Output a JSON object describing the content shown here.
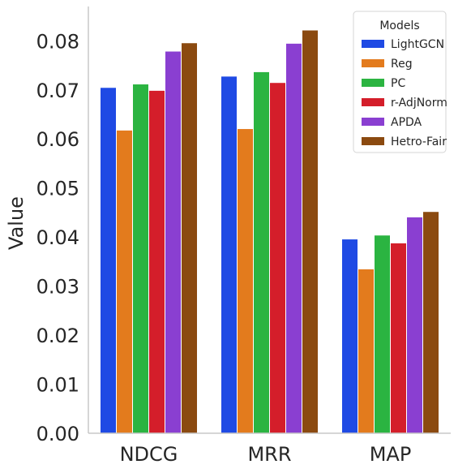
{
  "chart_data": {
    "type": "bar",
    "title": "",
    "xlabel": "",
    "ylabel": "Value",
    "categories": [
      "NDCG",
      "MRR",
      "MAP"
    ],
    "ylim": [
      0,
      0.087
    ],
    "yticks": [
      "0.00",
      "0.01",
      "0.02",
      "0.03",
      "0.04",
      "0.05",
      "0.06",
      "0.07",
      "0.08"
    ],
    "grid": false,
    "legend": {
      "title": "Models",
      "placement": "top-right"
    },
    "series": [
      {
        "name": "LightGCN",
        "color": "#1f4ae4",
        "values": [
          0.0705,
          0.0728,
          0.0396
        ]
      },
      {
        "name": "Reg",
        "color": "#e37b1d",
        "values": [
          0.0618,
          0.0621,
          0.0335
        ]
      },
      {
        "name": "PC",
        "color": "#2bb441",
        "values": [
          0.0712,
          0.0737,
          0.0404
        ]
      },
      {
        "name": "r-AdjNorm",
        "color": "#d41e2a",
        "values": [
          0.0699,
          0.0715,
          0.0388
        ]
      },
      {
        "name": "APDA",
        "color": "#8a3fd1",
        "values": [
          0.0779,
          0.0795,
          0.0441
        ]
      },
      {
        "name": "Hetro-Fair",
        "color": "#8b4a10",
        "values": [
          0.0796,
          0.0822,
          0.0452
        ]
      }
    ]
  }
}
